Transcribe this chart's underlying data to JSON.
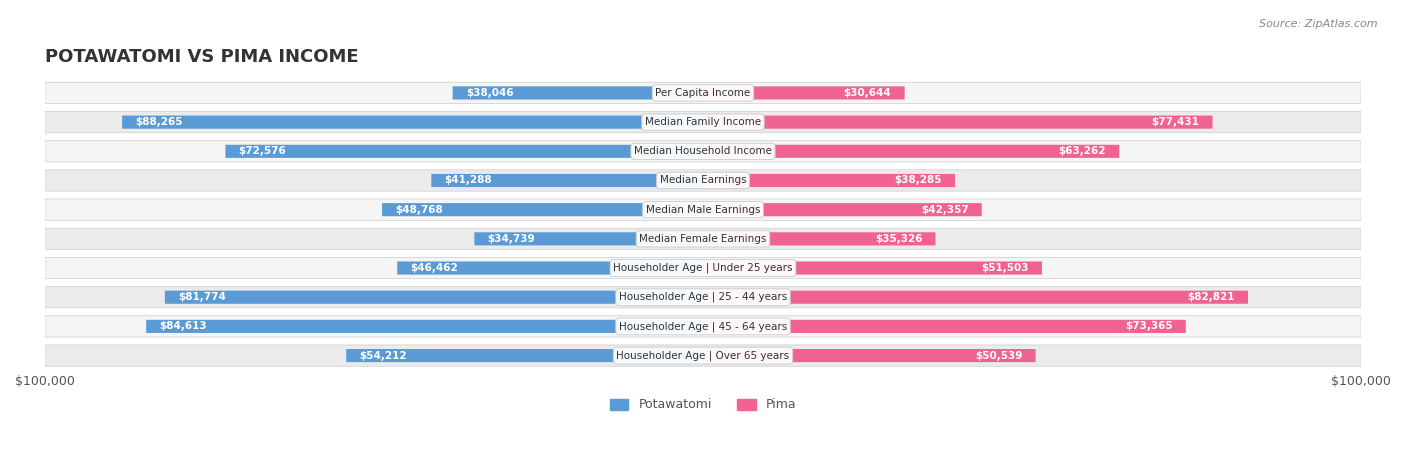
{
  "title": "POTAWATOMI VS PIMA INCOME",
  "source": "Source: ZipAtlas.com",
  "categories": [
    "Per Capita Income",
    "Median Family Income",
    "Median Household Income",
    "Median Earnings",
    "Median Male Earnings",
    "Median Female Earnings",
    "Householder Age | Under 25 years",
    "Householder Age | 25 - 44 years",
    "Householder Age | 45 - 64 years",
    "Householder Age | Over 65 years"
  ],
  "potawatomi_values": [
    38046,
    88265,
    72576,
    41288,
    48768,
    34739,
    46462,
    81774,
    84613,
    54212
  ],
  "pima_values": [
    30644,
    77431,
    63262,
    38285,
    42357,
    35326,
    51503,
    82821,
    73365,
    50539
  ],
  "max_value": 100000,
  "potawatomi_color": "#92b4d8",
  "potawatomi_color_dark": "#5b9bd5",
  "pima_color": "#f4a7b9",
  "pima_color_dark": "#f06292",
  "label_color_outside": "#555555",
  "label_color_inside": "#ffffff",
  "background_color": "#ffffff",
  "row_bg_color": "#f0f0f0",
  "row_alt_bg_color": "#e8e8e8",
  "legend_potawatomi": "Potawatomi",
  "legend_pima": "Pima",
  "x_axis_label_left": "$100,000",
  "x_axis_label_right": "$100,000"
}
